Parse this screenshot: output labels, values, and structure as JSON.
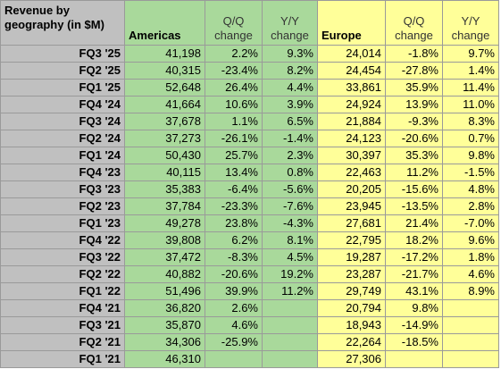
{
  "header": {
    "label_line1": "Revenue by",
    "label_line2": "geography (in $M)",
    "americas": "Americas",
    "europe": "Europe",
    "qq_line1": "Q/Q",
    "qq_line2": "change",
    "yy_line1": "Y/Y",
    "yy_line2": "change"
  },
  "colors": {
    "label_bg": "#c0c0c0",
    "americas_bg": "#a9d99b",
    "europe_bg": "#ffff99"
  },
  "rows": [
    {
      "q": "FQ3 '25",
      "am": "41,198",
      "am_qq": "2.2%",
      "am_yy": "9.3%",
      "eu": "24,014",
      "eu_qq": "-1.8%",
      "eu_yy": "9.7%"
    },
    {
      "q": "FQ2 '25",
      "am": "40,315",
      "am_qq": "-23.4%",
      "am_yy": "8.2%",
      "eu": "24,454",
      "eu_qq": "-27.8%",
      "eu_yy": "1.4%"
    },
    {
      "q": "FQ1 '25",
      "am": "52,648",
      "am_qq": "26.4%",
      "am_yy": "4.4%",
      "eu": "33,861",
      "eu_qq": "35.9%",
      "eu_yy": "11.4%"
    },
    {
      "q": "FQ4 '24",
      "am": "41,664",
      "am_qq": "10.6%",
      "am_yy": "3.9%",
      "eu": "24,924",
      "eu_qq": "13.9%",
      "eu_yy": "11.0%"
    },
    {
      "q": "FQ3 '24",
      "am": "37,678",
      "am_qq": "1.1%",
      "am_yy": "6.5%",
      "eu": "21,884",
      "eu_qq": "-9.3%",
      "eu_yy": "8.3%"
    },
    {
      "q": "FQ2 '24",
      "am": "37,273",
      "am_qq": "-26.1%",
      "am_yy": "-1.4%",
      "eu": "24,123",
      "eu_qq": "-20.6%",
      "eu_yy": "0.7%"
    },
    {
      "q": "FQ1 '24",
      "am": "50,430",
      "am_qq": "25.7%",
      "am_yy": "2.3%",
      "eu": "30,397",
      "eu_qq": "35.3%",
      "eu_yy": "9.8%"
    },
    {
      "q": "FQ4 '23",
      "am": "40,115",
      "am_qq": "13.4%",
      "am_yy": "0.8%",
      "eu": "22,463",
      "eu_qq": "11.2%",
      "eu_yy": "-1.5%"
    },
    {
      "q": "FQ3 '23",
      "am": "35,383",
      "am_qq": "-6.4%",
      "am_yy": "-5.6%",
      "eu": "20,205",
      "eu_qq": "-15.6%",
      "eu_yy": "4.8%"
    },
    {
      "q": "FQ2 '23",
      "am": "37,784",
      "am_qq": "-23.3%",
      "am_yy": "-7.6%",
      "eu": "23,945",
      "eu_qq": "-13.5%",
      "eu_yy": "2.8%"
    },
    {
      "q": "FQ1 '23",
      "am": "49,278",
      "am_qq": "23.8%",
      "am_yy": "-4.3%",
      "eu": "27,681",
      "eu_qq": "21.4%",
      "eu_yy": "-7.0%"
    },
    {
      "q": "FQ4 '22",
      "am": "39,808",
      "am_qq": "6.2%",
      "am_yy": "8.1%",
      "eu": "22,795",
      "eu_qq": "18.2%",
      "eu_yy": "9.6%"
    },
    {
      "q": "FQ3 '22",
      "am": "37,472",
      "am_qq": "-8.3%",
      "am_yy": "4.5%",
      "eu": "19,287",
      "eu_qq": "-17.2%",
      "eu_yy": "1.8%"
    },
    {
      "q": "FQ2 '22",
      "am": "40,882",
      "am_qq": "-20.6%",
      "am_yy": "19.2%",
      "eu": "23,287",
      "eu_qq": "-21.7%",
      "eu_yy": "4.6%"
    },
    {
      "q": "FQ1 '22",
      "am": "51,496",
      "am_qq": "39.9%",
      "am_yy": "11.2%",
      "eu": "29,749",
      "eu_qq": "43.1%",
      "eu_yy": "8.9%"
    },
    {
      "q": "FQ4 '21",
      "am": "36,820",
      "am_qq": "2.6%",
      "am_yy": "",
      "eu": "20,794",
      "eu_qq": "9.8%",
      "eu_yy": ""
    },
    {
      "q": "FQ3 '21",
      "am": "35,870",
      "am_qq": "4.6%",
      "am_yy": "",
      "eu": "18,943",
      "eu_qq": "-14.9%",
      "eu_yy": ""
    },
    {
      "q": "FQ2 '21",
      "am": "34,306",
      "am_qq": "-25.9%",
      "am_yy": "",
      "eu": "22,264",
      "eu_qq": "-18.5%",
      "eu_yy": ""
    },
    {
      "q": "FQ1 '21",
      "am": "46,310",
      "am_qq": "",
      "am_yy": "",
      "eu": "27,306",
      "eu_qq": "",
      "eu_yy": ""
    }
  ]
}
